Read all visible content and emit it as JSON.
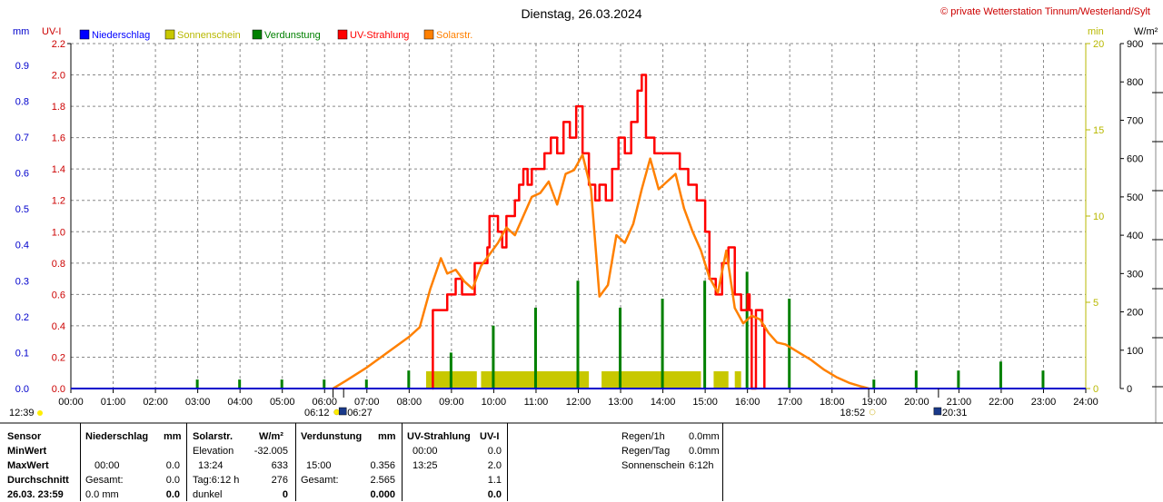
{
  "header": {
    "title": "Dienstag, 26.03.2024",
    "copyright": "© private Wetterstation Tinnum/Westerland/Sylt"
  },
  "chart_data": {
    "type": "line",
    "left_axes": [
      {
        "unit": "mm",
        "color": "#0000cc",
        "ticks": [
          0.0,
          0.1,
          0.2,
          0.3,
          0.4,
          0.5,
          0.6,
          0.7,
          0.8,
          0.9
        ],
        "ylim": [
          0,
          0.96
        ]
      },
      {
        "unit": "UV-I",
        "color": "#cc0000",
        "ticks": [
          0.0,
          0.2,
          0.4,
          0.6,
          0.8,
          1.0,
          1.2,
          1.4,
          1.6,
          1.8,
          2.0,
          2.2
        ],
        "ylim": [
          0,
          2.2
        ]
      }
    ],
    "right_axes": [
      {
        "unit": "min",
        "color": "#b8b800",
        "ticks": [
          0,
          5,
          10,
          15,
          20
        ],
        "ylim": [
          0,
          20
        ]
      },
      {
        "unit": "W/m²",
        "color": "#000000",
        "ticks": [
          0,
          100,
          200,
          300,
          400,
          500,
          600,
          700,
          800,
          900
        ],
        "ylim": [
          0,
          900
        ]
      }
    ],
    "x_ticks": [
      "00:00",
      "01:00",
      "02:00",
      "03:00",
      "04:00",
      "05:00",
      "06:00",
      "07:00",
      "08:00",
      "09:00",
      "10:00",
      "11:00",
      "12:00",
      "13:00",
      "14:00",
      "15:00",
      "16:00",
      "17:00",
      "18:00",
      "19:00",
      "20:00",
      "21:00",
      "22:00",
      "23:00",
      "24:00"
    ],
    "legend": [
      {
        "label": "Niederschlag",
        "color": "#0000ff"
      },
      {
        "label": "Sonnenschein",
        "color": "#c8c800"
      },
      {
        "label": "Verdunstung",
        "color": "#008000"
      },
      {
        "label": "UV-Strahlung",
        "color": "#ff0000"
      },
      {
        "label": "Solarstr.",
        "color": "#ff8000"
      }
    ],
    "grid": true,
    "series": [
      {
        "name": "UV-Strahlung",
        "unit": "UV-I",
        "color": "#ff0000",
        "x": [
          8.55,
          8.56,
          8.9,
          9.1,
          9.25,
          9.55,
          9.85,
          9.9,
          10.1,
          10.2,
          10.3,
          10.5,
          10.6,
          10.7,
          10.8,
          10.9,
          11.0,
          11.2,
          11.35,
          11.5,
          11.65,
          11.8,
          11.95,
          12.1,
          12.25,
          12.4,
          12.5,
          12.65,
          12.8,
          12.95,
          13.1,
          13.25,
          13.4,
          13.5,
          13.6,
          13.8,
          14.0,
          14.2,
          14.4,
          14.6,
          14.8,
          15.0,
          15.1,
          15.25,
          15.4,
          15.55,
          15.7,
          15.85,
          16.0,
          16.05,
          16.1,
          16.2,
          16.35,
          16.4
        ],
        "values": [
          0.0,
          0.5,
          0.6,
          0.7,
          0.6,
          0.8,
          0.9,
          1.1,
          1.0,
          0.9,
          1.1,
          1.2,
          1.3,
          1.4,
          1.3,
          1.4,
          1.4,
          1.5,
          1.6,
          1.5,
          1.7,
          1.6,
          1.8,
          1.5,
          1.3,
          1.2,
          1.3,
          1.2,
          1.4,
          1.6,
          1.5,
          1.7,
          1.9,
          2.0,
          1.6,
          1.5,
          1.5,
          1.5,
          1.4,
          1.3,
          1.2,
          1.0,
          0.7,
          0.6,
          0.8,
          0.9,
          0.6,
          0.5,
          0.6,
          0.5,
          0.0,
          0.5,
          0.4,
          0.0
        ]
      },
      {
        "name": "Solarstr.",
        "unit": "W/m²",
        "color": "#ff8000",
        "x": [
          6.2,
          6.5,
          7.0,
          7.5,
          8.0,
          8.25,
          8.5,
          8.75,
          8.9,
          9.1,
          9.3,
          9.5,
          9.7,
          9.9,
          10.1,
          10.3,
          10.5,
          10.7,
          10.9,
          11.1,
          11.3,
          11.5,
          11.7,
          11.9,
          12.1,
          12.3,
          12.5,
          12.7,
          12.9,
          13.1,
          13.3,
          13.5,
          13.7,
          13.9,
          14.1,
          14.3,
          14.5,
          14.7,
          14.9,
          15.1,
          15.3,
          15.5,
          15.7,
          15.9,
          16.1,
          16.3,
          16.5,
          16.7,
          16.9,
          17.2,
          17.5,
          17.8,
          18.1,
          18.4,
          18.7,
          18.87
        ],
        "values": [
          0,
          20,
          55,
          95,
          135,
          160,
          260,
          340,
          300,
          310,
          280,
          260,
          320,
          350,
          380,
          420,
          400,
          450,
          500,
          510,
          540,
          480,
          560,
          570,
          610,
          520,
          240,
          270,
          400,
          380,
          430,
          520,
          600,
          520,
          540,
          560,
          470,
          410,
          360,
          290,
          250,
          360,
          210,
          170,
          190,
          180,
          145,
          120,
          115,
          95,
          75,
          50,
          30,
          15,
          5,
          0
        ]
      }
    ],
    "sunshine_bars": {
      "unit": "min",
      "color": "#c8c800",
      "segments": [
        [
          8.4,
          9.6
        ],
        [
          9.7,
          12.25
        ],
        [
          12.55,
          14.9
        ],
        [
          15.2,
          15.55
        ],
        [
          15.7,
          15.85
        ]
      ],
      "value": 1
    },
    "evaporation_bars": {
      "unit": "mm",
      "color": "#008000",
      "x": [
        3,
        4,
        5,
        6,
        7,
        8,
        9,
        10,
        11,
        12,
        13,
        14,
        15,
        16,
        17,
        19,
        20,
        21,
        22,
        23
      ],
      "values": [
        0.025,
        0.025,
        0.025,
        0.025,
        0.025,
        0.05,
        0.1,
        0.175,
        0.225,
        0.3,
        0.225,
        0.25,
        0.3,
        0.325,
        0.25,
        0.025,
        0.05,
        0.05,
        0.075,
        0.05
      ]
    }
  },
  "events": {
    "sunrise": "06:12",
    "civil_dawn": "06:27",
    "sunset": "18:52",
    "civil_dusk": "20:31",
    "daylength_left": "12:39"
  },
  "table": {
    "col1": {
      "header": "Sensor",
      "rows": [
        "MinWert",
        "MaxWert",
        "Durchschnitt",
        "26.03.  23:59"
      ]
    },
    "col2": {
      "header": "Niederschlag",
      "unit": "mm",
      "rows": [
        [
          "",
          ""
        ],
        [
          "00:00",
          "0.0"
        ],
        [
          "Gesamt:",
          "0.0"
        ],
        [
          "0.0 mm",
          "0.0"
        ]
      ]
    },
    "col3": {
      "header": "Solarstr.",
      "unit": "W/m²",
      "rows": [
        [
          "Elevation",
          "-32.005"
        ],
        [
          "13:24",
          "633"
        ],
        [
          "Tag:6:12 h",
          "276"
        ],
        [
          "dunkel",
          "0"
        ]
      ]
    },
    "col4": {
      "header": "Verdunstung",
      "unit": "mm",
      "rows": [
        [
          "",
          ""
        ],
        [
          "15:00",
          "0.356"
        ],
        [
          "Gesamt:",
          "2.565"
        ],
        [
          "",
          "0.000"
        ]
      ]
    },
    "col5": {
      "header": "UV-Strahlung",
      "unit": "UV-I",
      "rows": [
        [
          "00:00",
          "0.0"
        ],
        [
          "13:25",
          "2.0"
        ],
        [
          "",
          "1.1"
        ],
        [
          "",
          "0.0"
        ]
      ]
    },
    "col6": {
      "rows": [
        [
          "Regen/1h",
          "0.0mm"
        ],
        [
          "Regen/Tag",
          "0.0mm"
        ],
        [
          "Sonnenschein",
          "6:12h"
        ]
      ]
    }
  }
}
